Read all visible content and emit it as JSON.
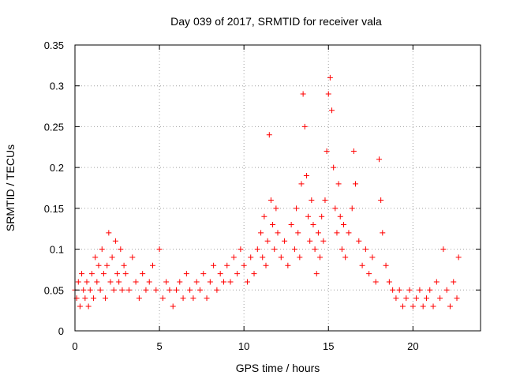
{
  "chart_data": {
    "type": "scatter",
    "title": "Day 039 of 2017, SRMTID for receiver vala",
    "xlabel": "GPS time / hours",
    "ylabel": "SRMTID / TECUs",
    "xlim": [
      0,
      24
    ],
    "ylim": [
      0,
      0.35
    ],
    "xticks": [
      0,
      5,
      10,
      15,
      20
    ],
    "xtick_labels": [
      "0",
      "5",
      "10",
      "15",
      "20"
    ],
    "yticks": [
      0,
      0.05,
      0.1,
      0.15,
      0.2,
      0.25,
      0.3,
      0.35
    ],
    "ytick_labels": [
      "0",
      "0.05",
      "0.1",
      "0.15",
      "0.2",
      "0.25",
      "0.3",
      "0.35"
    ],
    "grid": true,
    "marker": "+",
    "color": "#ff0000",
    "series": [
      {
        "name": "SRMTID",
        "points": [
          [
            0.0,
            0.05
          ],
          [
            0.1,
            0.04
          ],
          [
            0.2,
            0.06
          ],
          [
            0.3,
            0.03
          ],
          [
            0.4,
            0.07
          ],
          [
            0.5,
            0.05
          ],
          [
            0.6,
            0.04
          ],
          [
            0.7,
            0.06
          ],
          [
            0.8,
            0.03
          ],
          [
            0.9,
            0.05
          ],
          [
            1.0,
            0.07
          ],
          [
            1.1,
            0.04
          ],
          [
            1.2,
            0.09
          ],
          [
            1.3,
            0.06
          ],
          [
            1.4,
            0.08
          ],
          [
            1.5,
            0.05
          ],
          [
            1.6,
            0.1
          ],
          [
            1.7,
            0.07
          ],
          [
            1.8,
            0.04
          ],
          [
            1.9,
            0.08
          ],
          [
            2.0,
            0.12
          ],
          [
            2.1,
            0.06
          ],
          [
            2.2,
            0.09
          ],
          [
            2.3,
            0.05
          ],
          [
            2.4,
            0.11
          ],
          [
            2.5,
            0.07
          ],
          [
            2.6,
            0.06
          ],
          [
            2.7,
            0.1
          ],
          [
            2.8,
            0.05
          ],
          [
            2.9,
            0.08
          ],
          [
            3.0,
            0.07
          ],
          [
            3.2,
            0.05
          ],
          [
            3.4,
            0.09
          ],
          [
            3.6,
            0.06
          ],
          [
            3.8,
            0.04
          ],
          [
            4.0,
            0.07
          ],
          [
            4.2,
            0.05
          ],
          [
            4.4,
            0.06
          ],
          [
            4.6,
            0.08
          ],
          [
            4.8,
            0.05
          ],
          [
            5.0,
            0.1
          ],
          [
            5.2,
            0.04
          ],
          [
            5.4,
            0.06
          ],
          [
            5.6,
            0.05
          ],
          [
            5.8,
            0.03
          ],
          [
            6.0,
            0.05
          ],
          [
            6.2,
            0.06
          ],
          [
            6.4,
            0.04
          ],
          [
            6.6,
            0.07
          ],
          [
            6.8,
            0.05
          ],
          [
            7.0,
            0.04
          ],
          [
            7.2,
            0.06
          ],
          [
            7.4,
            0.05
          ],
          [
            7.6,
            0.07
          ],
          [
            7.8,
            0.04
          ],
          [
            8.0,
            0.06
          ],
          [
            8.2,
            0.08
          ],
          [
            8.4,
            0.05
          ],
          [
            8.6,
            0.07
          ],
          [
            8.8,
            0.06
          ],
          [
            9.0,
            0.08
          ],
          [
            9.2,
            0.06
          ],
          [
            9.4,
            0.09
          ],
          [
            9.6,
            0.07
          ],
          [
            9.8,
            0.1
          ],
          [
            10.0,
            0.08
          ],
          [
            10.2,
            0.06
          ],
          [
            10.4,
            0.09
          ],
          [
            10.6,
            0.07
          ],
          [
            10.8,
            0.1
          ],
          [
            11.0,
            0.12
          ],
          [
            11.1,
            0.09
          ],
          [
            11.2,
            0.14
          ],
          [
            11.3,
            0.08
          ],
          [
            11.4,
            0.11
          ],
          [
            11.5,
            0.24
          ],
          [
            11.6,
            0.16
          ],
          [
            11.7,
            0.13
          ],
          [
            11.8,
            0.1
          ],
          [
            11.9,
            0.15
          ],
          [
            12.0,
            0.12
          ],
          [
            12.2,
            0.09
          ],
          [
            12.4,
            0.11
          ],
          [
            12.6,
            0.08
          ],
          [
            12.8,
            0.13
          ],
          [
            13.0,
            0.1
          ],
          [
            13.1,
            0.15
          ],
          [
            13.2,
            0.12
          ],
          [
            13.3,
            0.09
          ],
          [
            13.4,
            0.18
          ],
          [
            13.5,
            0.29
          ],
          [
            13.6,
            0.25
          ],
          [
            13.7,
            0.19
          ],
          [
            13.8,
            0.14
          ],
          [
            13.9,
            0.11
          ],
          [
            14.0,
            0.16
          ],
          [
            14.1,
            0.13
          ],
          [
            14.2,
            0.1
          ],
          [
            14.3,
            0.07
          ],
          [
            14.4,
            0.12
          ],
          [
            14.5,
            0.09
          ],
          [
            14.6,
            0.14
          ],
          [
            14.7,
            0.11
          ],
          [
            14.8,
            0.16
          ],
          [
            14.9,
            0.22
          ],
          [
            15.0,
            0.29
          ],
          [
            15.1,
            0.31
          ],
          [
            15.2,
            0.27
          ],
          [
            15.3,
            0.2
          ],
          [
            15.4,
            0.15
          ],
          [
            15.5,
            0.12
          ],
          [
            15.6,
            0.18
          ],
          [
            15.7,
            0.14
          ],
          [
            15.8,
            0.1
          ],
          [
            15.9,
            0.13
          ],
          [
            16.0,
            0.09
          ],
          [
            16.2,
            0.12
          ],
          [
            16.4,
            0.15
          ],
          [
            16.5,
            0.22
          ],
          [
            16.6,
            0.18
          ],
          [
            16.8,
            0.11
          ],
          [
            17.0,
            0.08
          ],
          [
            17.2,
            0.1
          ],
          [
            17.4,
            0.07
          ],
          [
            17.6,
            0.09
          ],
          [
            17.8,
            0.06
          ],
          [
            18.0,
            0.21
          ],
          [
            18.1,
            0.16
          ],
          [
            18.2,
            0.12
          ],
          [
            18.4,
            0.08
          ],
          [
            18.6,
            0.06
          ],
          [
            18.8,
            0.05
          ],
          [
            19.0,
            0.04
          ],
          [
            19.2,
            0.05
          ],
          [
            19.4,
            0.03
          ],
          [
            19.6,
            0.04
          ],
          [
            19.8,
            0.05
          ],
          [
            20.0,
            0.03
          ],
          [
            20.2,
            0.04
          ],
          [
            20.4,
            0.05
          ],
          [
            20.6,
            0.03
          ],
          [
            20.8,
            0.04
          ],
          [
            21.0,
            0.05
          ],
          [
            21.2,
            0.03
          ],
          [
            21.4,
            0.06
          ],
          [
            21.6,
            0.04
          ],
          [
            21.8,
            0.1
          ],
          [
            22.0,
            0.05
          ],
          [
            22.2,
            0.03
          ],
          [
            22.4,
            0.06
          ],
          [
            22.6,
            0.04
          ],
          [
            22.7,
            0.09
          ]
        ]
      }
    ]
  }
}
